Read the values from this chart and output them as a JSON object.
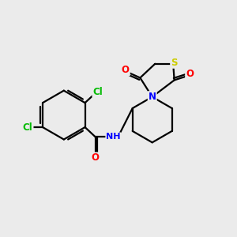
{
  "bg_color": "#ebebeb",
  "bond_color": "#000000",
  "atom_colors": {
    "S": "#cccc00",
    "N": "#0000ff",
    "O": "#ff0000",
    "Cl": "#00bb00",
    "H": "#555555",
    "C": "#000000"
  },
  "figsize": [
    3.0,
    3.0
  ],
  "dpi": 100
}
